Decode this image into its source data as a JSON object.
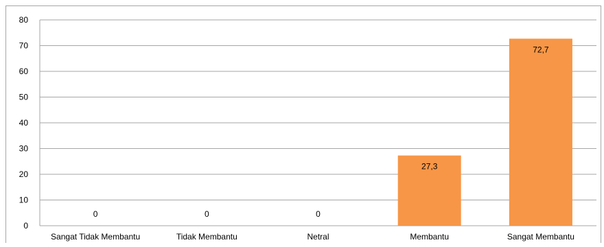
{
  "chart_data": {
    "type": "bar",
    "categories": [
      "Sangat Tidak Membantu",
      "Tidak Membantu",
      "Netral",
      "Membantu",
      "Sangat Membantu"
    ],
    "values": [
      0,
      0,
      0,
      27.3,
      72.7
    ],
    "data_labels": [
      "0",
      "0",
      "0",
      "27,3",
      "72,7"
    ],
    "yticks": [
      "0",
      "10",
      "20",
      "30",
      "40",
      "50",
      "60",
      "70",
      "80"
    ],
    "ylim": [
      0,
      80
    ],
    "grid": true,
    "legend": "none",
    "bar_color": "#f79646",
    "grid_color": "#a6a6a6",
    "text_color": "#000000"
  }
}
